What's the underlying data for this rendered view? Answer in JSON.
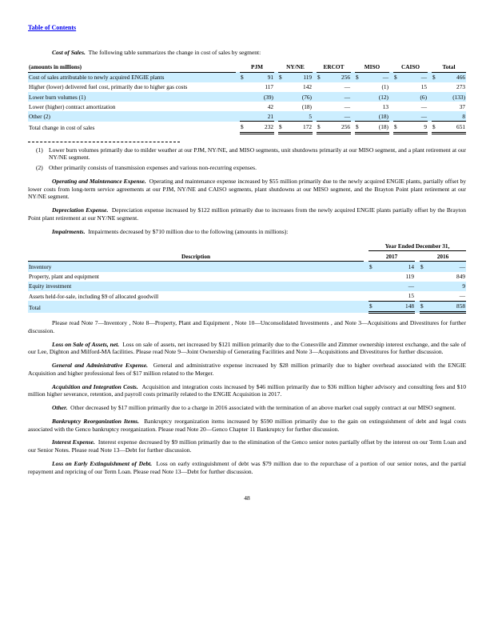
{
  "header": {
    "toc_link": "Table of Contents"
  },
  "intro": {
    "lead": "Cost of Sales.",
    "text": "The following table summarizes the change in cost of sales by segment:"
  },
  "cost_table": {
    "caption": "(amounts in millions)",
    "columns": [
      "PJM",
      "NY/NE",
      "ERCOT",
      "MISO",
      "CAISO",
      "Total"
    ],
    "rows": [
      {
        "label": "Cost of sales attributable to newly acquired ENGIE plants",
        "cells": [
          {
            "s": "$",
            "v": "91"
          },
          {
            "s": "$",
            "v": "119"
          },
          {
            "s": "$",
            "v": "256"
          },
          {
            "s": "$",
            "v": "—"
          },
          {
            "s": "$",
            "v": "—"
          },
          {
            "s": "$",
            "v": "466"
          }
        ]
      },
      {
        "label": "Higher (lower) delivered fuel cost, primarily due to higher gas costs",
        "cells": [
          {
            "s": "",
            "v": "117"
          },
          {
            "s": "",
            "v": "142"
          },
          {
            "s": "",
            "v": "—"
          },
          {
            "s": "",
            "v": "(1)"
          },
          {
            "s": "",
            "v": "15"
          },
          {
            "s": "",
            "v": "273"
          }
        ]
      },
      {
        "label": "Lower burn volumes (1)",
        "cells": [
          {
            "s": "",
            "v": "(39)"
          },
          {
            "s": "",
            "v": "(76)"
          },
          {
            "s": "",
            "v": "—"
          },
          {
            "s": "",
            "v": "(12)"
          },
          {
            "s": "",
            "v": "(6)"
          },
          {
            "s": "",
            "v": "(133)"
          }
        ]
      },
      {
        "label": "Lower (higher) contract amortization",
        "cells": [
          {
            "s": "",
            "v": "42"
          },
          {
            "s": "",
            "v": "(18)"
          },
          {
            "s": "",
            "v": "—"
          },
          {
            "s": "",
            "v": "13"
          },
          {
            "s": "",
            "v": "—"
          },
          {
            "s": "",
            "v": "37"
          }
        ]
      },
      {
        "label": "Other (2)",
        "cells": [
          {
            "s": "",
            "v": "21"
          },
          {
            "s": "",
            "v": "5"
          },
          {
            "s": "",
            "v": "—"
          },
          {
            "s": "",
            "v": "(18)"
          },
          {
            "s": "",
            "v": "—"
          },
          {
            "s": "",
            "v": "8"
          }
        ]
      },
      {
        "label": "Total change in cost of sales",
        "cells": [
          {
            "s": "$",
            "v": "232"
          },
          {
            "s": "$",
            "v": "172"
          },
          {
            "s": "$",
            "v": "256"
          },
          {
            "s": "$",
            "v": "(18)"
          },
          {
            "s": "$",
            "v": "9"
          },
          {
            "s": "$",
            "v": "651"
          }
        ]
      }
    ]
  },
  "footnotes": [
    {
      "num": "(1)",
      "text": "Lower burn volumes primarily due to milder weather at our PJM, NY/NE, and MISO segments, unit shutdowns primarily at our MISO segment, and a plant retirement at our NY/NE segment."
    },
    {
      "num": "(2)",
      "text": "Other primarily consists of transmission expenses and various non-recurring expenses."
    }
  ],
  "paragraphs_mid": [
    {
      "lead": "Operating and Maintenance Expense.",
      "text": "Operating and maintenance expense increased by $55 million primarily due to the newly acquired ENGIE plants, partially offset by lower costs from long-term service agreements at our PJM, NY/NE and CAISO segments, plant shutdowns at our MISO segment, and the Brayton Point plant retirement at our NY/NE segment."
    },
    {
      "lead": "Depreciation Expense.",
      "text": "Depreciation expense increased by $122 million primarily due to increases from the newly acquired ENGIE plants partially offset by the Brayton Point plant retirement at our NY/NE segment."
    },
    {
      "lead": "Impairments.",
      "text": "Impairments decreased by $710 million due to the following (amounts in millions):"
    }
  ],
  "impairments_table": {
    "year_header": "Year Ended December 31,",
    "description_header": "Description",
    "columns": [
      "2017",
      "2016"
    ],
    "rows": [
      {
        "label": "Inventory",
        "cells": [
          {
            "s": "$",
            "v": "14"
          },
          {
            "s": "$",
            "v": "—"
          }
        ]
      },
      {
        "label": "Property, plant and equipment",
        "cells": [
          {
            "s": "",
            "v": "119"
          },
          {
            "s": "",
            "v": "849"
          }
        ]
      },
      {
        "label": "Equity investment",
        "cells": [
          {
            "s": "",
            "v": "—"
          },
          {
            "s": "",
            "v": "9"
          }
        ]
      },
      {
        "label": "Assets held-for-sale, including $9 of allocated goodwill",
        "cells": [
          {
            "s": "",
            "v": "15"
          },
          {
            "s": "",
            "v": "—"
          }
        ]
      },
      {
        "label": "Total",
        "cells": [
          {
            "s": "$",
            "v": "148"
          },
          {
            "s": "$",
            "v": "858"
          }
        ]
      }
    ]
  },
  "paragraphs_end": [
    {
      "lead": "",
      "text": "Please read Note 7—Inventory , Note 8—Property, Plant and Equipment , Note 10—Unconsolidated Investments , and Note 3—Acquisitions and Divestitures for further discussion."
    },
    {
      "lead": "Loss on Sale of Assets, net.",
      "text": "Loss on sale of assets, net increased by $121 million primarily due to the Conesville and Zimmer ownership interest exchange, and the sale of our Lee, Dighton and Milford-MA facilities. Please read Note 9—Joint Ownership of Generating Facilities and Note 3—Acquisitions and Divestitures for further discussion."
    },
    {
      "lead": "General and Administrative Expense.",
      "text": "General and administrative expense increased by $28 million primarily due to higher overhead associated with the ENGIE Acquisition and higher professional fees of $17 million related to the Merger."
    },
    {
      "lead": "Acquisition and Integration Costs.",
      "text": "Acquisition and integration costs increased by $46 million primarily due to $36 million higher advisory and consulting fees and $10 million higher severance, retention, and payroll costs primarily related to the ENGIE Acquisition in 2017."
    },
    {
      "lead": "Other.",
      "text": "Other decreased by $17 million primarily due to a charge in 2016 associated with the termination of an above market coal supply contract at our MISO segment."
    },
    {
      "lead": "Bankruptcy Reorganization Items.",
      "text": "Bankruptcy reorganization items increased by $590 million primarily due to the gain on extinguishment of debt and legal costs associated with the Genco bankruptcy reorganization. Please read Note 20—Genco Chapter 11 Bankruptcy for further discussion."
    },
    {
      "lead": "Interest Expense.",
      "text": "Interest expense decreased by $9 million primarily due to the elimination of the Genco senior notes partially offset by the interest on our Term Loan and our Senior Notes. Please read Note 13—Debt for further discussion."
    },
    {
      "lead": "Loss on Early Extinguishment of Debt.",
      "text": "Loss on early extinguishment of debt was $79 million due to the repurchase of a portion of our senior notes, and the partial repayment and repricing of our Term Loan. Please read Note 13—Debt for further discussion."
    }
  ],
  "footer": {
    "page_number": "48"
  }
}
